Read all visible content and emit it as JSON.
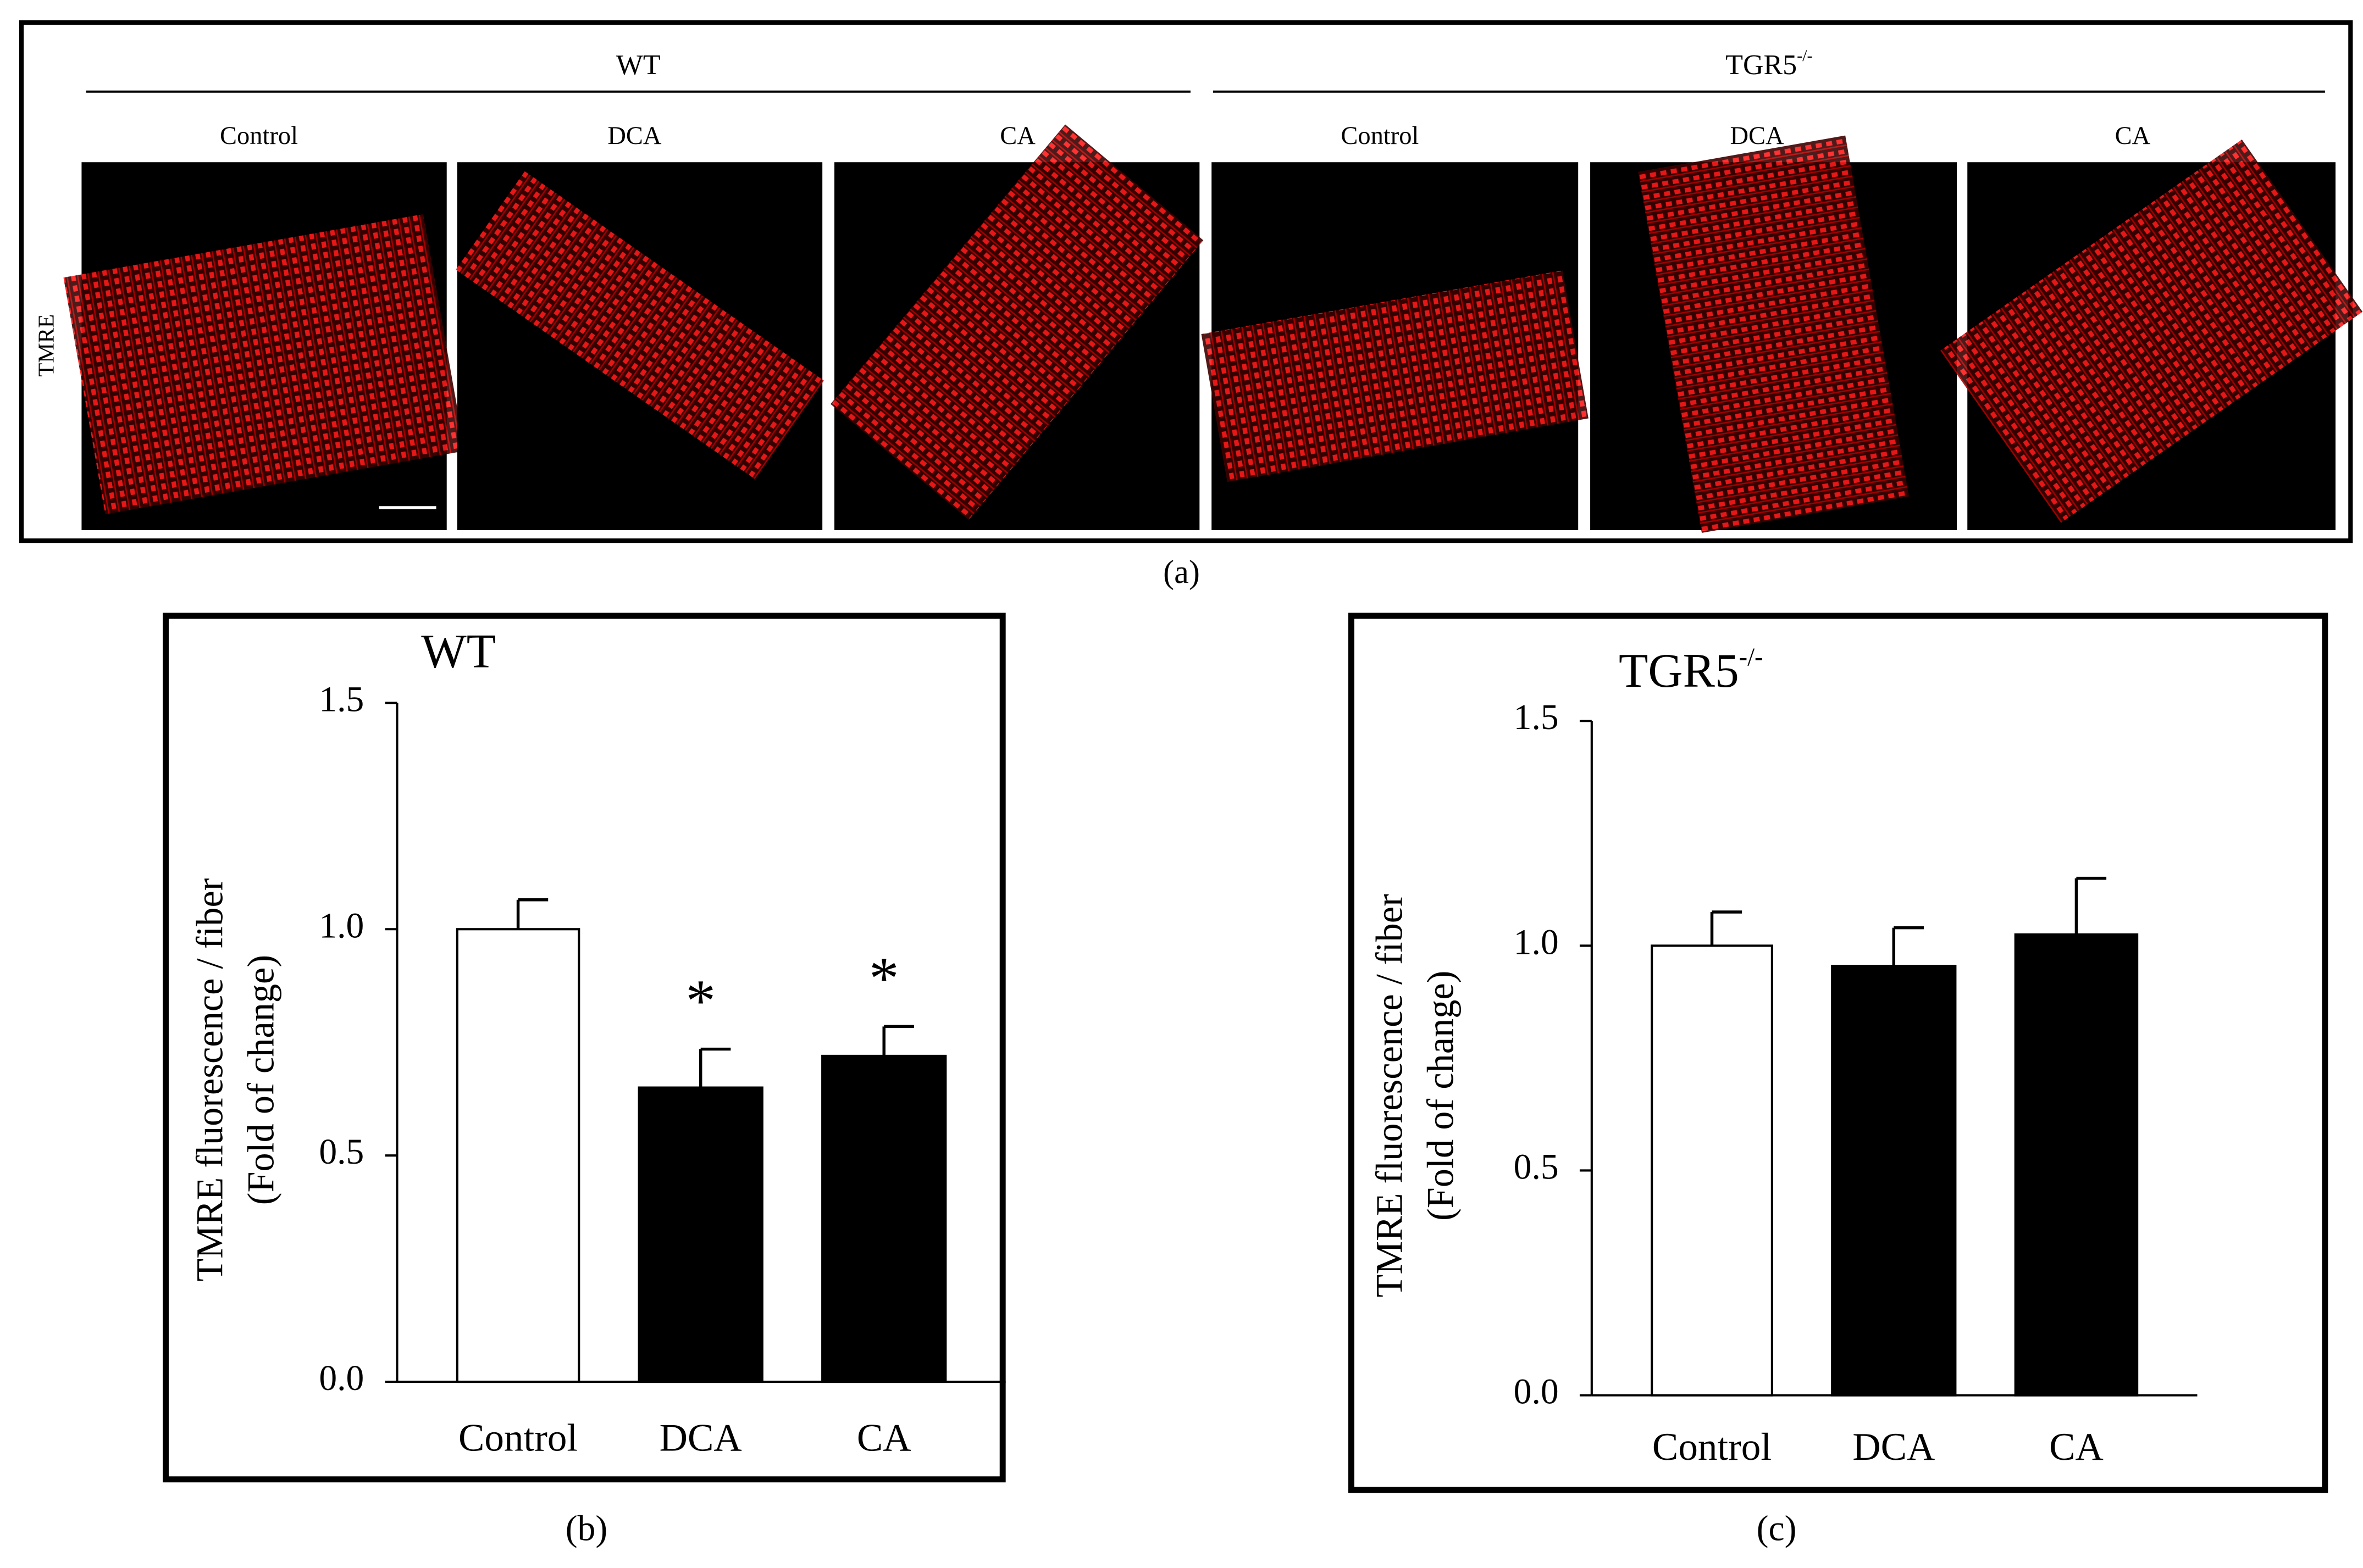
{
  "panel_a": {
    "caption": "(a)",
    "row_label": "TMRE",
    "groups": [
      {
        "label": "WT",
        "conditions": [
          "Control",
          "DCA",
          "CA"
        ]
      },
      {
        "label": "TGR5",
        "label_superscript": "-/-",
        "conditions": [
          "Control",
          "DCA",
          "CA"
        ]
      }
    ]
  },
  "chart_data": [
    {
      "type": "bar",
      "caption": "(b)",
      "title": "WT",
      "y_label": [
        "TMRE fluorescence / fiber",
        "(Fold of change)"
      ],
      "categories": [
        "Control",
        "DCA",
        "CA"
      ],
      "values": [
        1.0,
        0.65,
        0.72
      ],
      "errors": [
        0.065,
        0.085,
        0.065
      ],
      "colors": [
        "#ffffff",
        "#000000",
        "#000000"
      ],
      "significance": [
        null,
        "*",
        "*"
      ],
      "ylim": [
        0,
        1.5
      ],
      "yticks": [
        {
          "value": 0,
          "label": "0.0"
        },
        {
          "value": 0.5,
          "label": "0.5"
        },
        {
          "value": 1,
          "label": "1.0"
        },
        {
          "value": 1.5,
          "label": "1.5"
        }
      ]
    },
    {
      "type": "bar",
      "caption": "(c)",
      "title": "TGR5",
      "title_superscript": "-/-",
      "y_label": [
        "TMRE fluorescence / fiber",
        "(Fold of change)"
      ],
      "categories": [
        "Control",
        "DCA",
        "CA"
      ],
      "values": [
        1.0,
        0.955,
        1.025
      ],
      "errors": [
        0.075,
        0.085,
        0.125
      ],
      "colors": [
        "#ffffff",
        "#000000",
        "#000000"
      ],
      "ylim": [
        0,
        1.5
      ],
      "yticks": [
        {
          "value": 0,
          "label": "0.0"
        },
        {
          "value": 0.5,
          "label": "0.5"
        },
        {
          "value": 1,
          "label": "1.0"
        },
        {
          "value": 1.5,
          "label": "1.5"
        }
      ]
    }
  ]
}
